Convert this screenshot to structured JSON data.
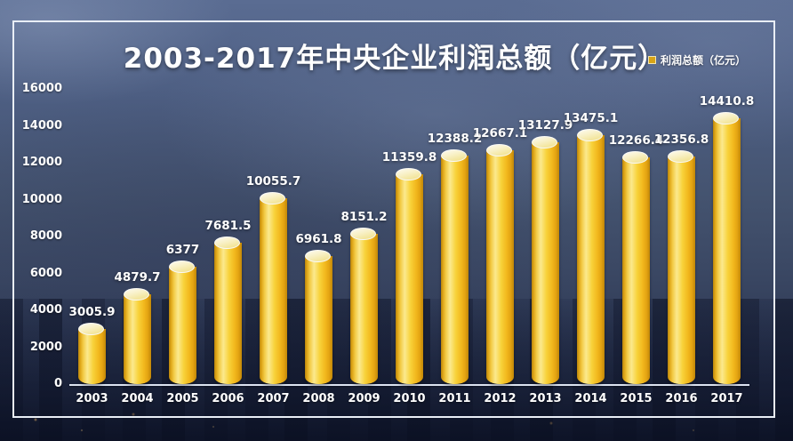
{
  "title": "2003-2017年中央企业利润总额（亿元）",
  "legend": {
    "label": "利润总额（亿元）",
    "marker_color": "#d8a416"
  },
  "colors": {
    "bar_main": "#f5c020",
    "bar_highlight": "#fbe98e",
    "bar_edge": "#c08708",
    "cap_fill": "#f8f0c4",
    "text": "#ffffff",
    "axis_line": "#dce3f0",
    "background_top": "#5a6c92",
    "background_bottom": "#222c49",
    "frame_border": "#e9eef6"
  },
  "chart_data": {
    "type": "bar",
    "title": "2003-2017年中央企业利润总额（亿元）",
    "categories": [
      "2003",
      "2004",
      "2005",
      "2006",
      "2007",
      "2008",
      "2009",
      "2010",
      "2011",
      "2012",
      "2013",
      "2014",
      "2015",
      "2016",
      "2017"
    ],
    "values": [
      3005.9,
      4879.7,
      6377,
      7681.5,
      10055.7,
      6961.8,
      8151.2,
      11359.8,
      12388.2,
      12667.1,
      13127.9,
      13475.1,
      12266.4,
      12356.8,
      14410.8
    ],
    "data_labels": [
      "3005.9",
      "4879.7",
      "6377",
      "7681.5",
      "10055.7",
      "6961.8",
      "8151.2",
      "11359.8",
      "12388.2",
      "12667.1",
      "13127.9",
      "13475.1",
      "12266.4",
      "12356.8",
      "14410.8"
    ],
    "xlabel": "",
    "ylabel": "",
    "ylim": [
      0,
      16000
    ],
    "yticks": [
      0,
      2000,
      4000,
      6000,
      8000,
      10000,
      12000,
      14000,
      16000
    ],
    "grid": false,
    "legend_entries": [
      "利润总额（亿元）"
    ],
    "legend_position": "top-right",
    "bar_style": "3d-cylinder"
  }
}
